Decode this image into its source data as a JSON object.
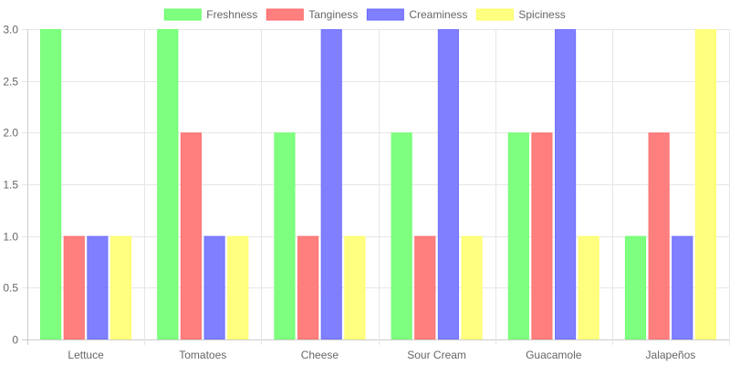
{
  "chart_data": {
    "type": "bar",
    "categories": [
      "Lettuce",
      "Tomatoes",
      "Cheese",
      "Sour Cream",
      "Guacamole",
      "Jalapeños"
    ],
    "series": [
      {
        "name": "Freshness",
        "color": "#7fff7f",
        "border": "#66ff66",
        "values": [
          3,
          3,
          2,
          2,
          2,
          1
        ]
      },
      {
        "name": "Tanginess",
        "color": "#ff7f7f",
        "border": "#ff6666",
        "values": [
          1,
          2,
          1,
          1,
          2,
          2
        ]
      },
      {
        "name": "Creaminess",
        "color": "#7f7fff",
        "border": "#6666ff",
        "values": [
          1,
          1,
          3,
          3,
          3,
          1
        ]
      },
      {
        "name": "Spiciness",
        "color": "#ffff7f",
        "border": "#ffff66",
        "values": [
          1,
          1,
          1,
          1,
          1,
          3
        ]
      }
    ],
    "ylim": [
      0,
      3
    ],
    "yticks": [
      "0",
      "0.5",
      "1.0",
      "1.5",
      "2.0",
      "2.5",
      "3.0"
    ],
    "grid": true,
    "legend_position": "top"
  }
}
